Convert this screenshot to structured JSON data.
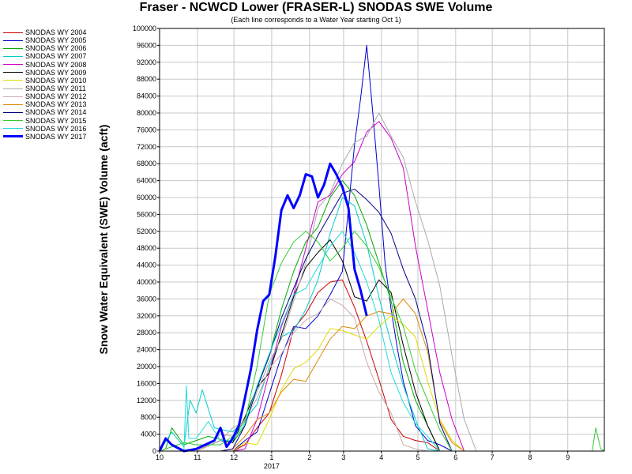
{
  "chart_data": {
    "type": "line",
    "title": "Fraser - NCWCD Lower (FRASER-L) SNODAS SWE Volume",
    "subtitle": "(Each line corresponds to a Water Year starting Oct 1)",
    "ylabel": "Snow Water Equivalent (SWE) Volume (acft)",
    "xlabel": "",
    "ylim": [
      0,
      100000
    ],
    "y_ticks": [
      0,
      4000,
      8000,
      12000,
      16000,
      20000,
      24000,
      28000,
      32000,
      36000,
      40000,
      44000,
      48000,
      52000,
      56000,
      60000,
      64000,
      68000,
      72000,
      76000,
      80000,
      84000,
      88000,
      92000,
      96000,
      100000
    ],
    "x_unit": "days since Oct 1",
    "xlim": [
      0,
      365
    ],
    "x_ticks": [
      {
        "label": "10",
        "x": 0
      },
      {
        "label": "11",
        "x": 31
      },
      {
        "label": "12",
        "x": 61
      },
      {
        "label": "1",
        "x": 92
      },
      {
        "label": "2",
        "x": 123
      },
      {
        "label": "3",
        "x": 151
      },
      {
        "label": "4",
        "x": 182
      },
      {
        "label": "5",
        "x": 212
      },
      {
        "label": "6",
        "x": 243
      },
      {
        "label": "7",
        "x": 273
      },
      {
        "label": "8",
        "x": 304
      },
      {
        "label": "9",
        "x": 335
      }
    ],
    "x_year_label": {
      "label": "2017",
      "x": 92
    },
    "grid": true,
    "legend_position": "left",
    "series": [
      {
        "name": "SNODAS WY 2004",
        "color": "#cc0000",
        "width": 1,
        "x": [
          0,
          60,
          70,
          80,
          90,
          100,
          110,
          120,
          130,
          140,
          150,
          160,
          170,
          180,
          190,
          200,
          210,
          220,
          230
        ],
        "y": [
          0,
          0,
          1000,
          4000,
          10000,
          18000,
          28000,
          34000,
          38000,
          40000,
          39000,
          35000,
          26000,
          16000,
          9000,
          4000,
          2000,
          500,
          0
        ]
      },
      {
        "name": "SNODAS WY 2005",
        "color": "#0000cc",
        "width": 1,
        "x": [
          0,
          10,
          60,
          70,
          80,
          90,
          100,
          110,
          120,
          130,
          140,
          150,
          155,
          160,
          165,
          170,
          175,
          180,
          185,
          190,
          195,
          200,
          210,
          220,
          230,
          240
        ],
        "y": [
          0,
          0,
          0,
          1500,
          6000,
          14000,
          22000,
          28000,
          30000,
          32000,
          36000,
          44000,
          58000,
          72000,
          82000,
          96000,
          80000,
          62000,
          46000,
          34000,
          24000,
          15000,
          7000,
          2500,
          500,
          0
        ]
      },
      {
        "name": "SNODAS WY 2006",
        "color": "#00aa00",
        "width": 1,
        "x": [
          0,
          5,
          10,
          20,
          40,
          60,
          70,
          80,
          90,
          100,
          110,
          120,
          130,
          140,
          150,
          160,
          170,
          180,
          190,
          200,
          210,
          220,
          230,
          240
        ],
        "y": [
          0,
          2000,
          6000,
          1000,
          2000,
          3000,
          6000,
          14000,
          24000,
          34000,
          42000,
          48000,
          54000,
          60000,
          64000,
          62000,
          54000,
          44000,
          34000,
          22000,
          12000,
          5000,
          1000,
          0
        ]
      },
      {
        "name": "SNODAS WY 2007",
        "color": "#00cccc",
        "width": 1,
        "x": [
          0,
          10,
          20,
          25,
          30,
          35,
          45,
          60,
          70,
          80,
          90,
          100,
          110,
          120,
          130,
          140,
          150,
          160,
          170,
          180,
          190,
          200,
          210,
          220,
          230
        ],
        "y": [
          0,
          3000,
          2000,
          12000,
          8000,
          16000,
          6000,
          4000,
          6000,
          12000,
          20000,
          26000,
          30000,
          34000,
          40000,
          50000,
          60000,
          58000,
          48000,
          38000,
          26000,
          15000,
          6000,
          1500,
          0
        ]
      },
      {
        "name": "SNODAS WY 2008",
        "color": "#cc00cc",
        "width": 1,
        "x": [
          0,
          60,
          70,
          80,
          90,
          100,
          110,
          120,
          130,
          140,
          150,
          160,
          170,
          180,
          190,
          200,
          210,
          220,
          230,
          240,
          250
        ],
        "y": [
          0,
          0,
          2000,
          8000,
          18000,
          28000,
          38000,
          48000,
          58000,
          62000,
          66000,
          68000,
          74000,
          78000,
          74000,
          66000,
          50000,
          34000,
          18000,
          6000,
          0
        ]
      },
      {
        "name": "SNODAS WY 2009",
        "color": "#000000",
        "width": 1,
        "x": [
          0,
          30,
          50,
          60,
          70,
          80,
          90,
          100,
          110,
          120,
          130,
          140,
          150,
          160,
          170,
          180,
          190,
          200,
          210,
          220,
          230,
          240
        ],
        "y": [
          0,
          0,
          1000,
          3000,
          8000,
          14000,
          20000,
          28000,
          36000,
          42000,
          48000,
          50000,
          44000,
          38000,
          36000,
          40000,
          36000,
          26000,
          14000,
          5000,
          1000,
          0
        ]
      },
      {
        "name": "SNODAS WY 2010",
        "color": "#dddd00",
        "width": 1,
        "x": [
          0,
          60,
          70,
          80,
          90,
          100,
          110,
          120,
          130,
          140,
          150,
          160,
          170,
          180,
          190,
          200,
          210,
          220,
          230,
          240,
          250
        ],
        "y": [
          0,
          0,
          1000,
          3000,
          8000,
          14000,
          18000,
          22000,
          24000,
          28000,
          30000,
          28000,
          26000,
          28000,
          32000,
          30000,
          26000,
          18000,
          8000,
          2000,
          0
        ]
      },
      {
        "name": "SNODAS WY 2011",
        "color": "#aaaaaa",
        "width": 1,
        "x": [
          0,
          30,
          50,
          60,
          70,
          80,
          90,
          100,
          110,
          120,
          130,
          140,
          150,
          160,
          170,
          180,
          190,
          200,
          210,
          220,
          230,
          240,
          250,
          260
        ],
        "y": [
          0,
          500,
          2000,
          4000,
          8000,
          14000,
          20000,
          28000,
          36000,
          44000,
          56000,
          62000,
          68000,
          72000,
          76000,
          80000,
          74000,
          68000,
          60000,
          50000,
          38000,
          24000,
          8000,
          0
        ]
      },
      {
        "name": "SNODAS WY 2012",
        "color": "#ccaaaa",
        "width": 1,
        "x": [
          0,
          30,
          40,
          50,
          60,
          70,
          80,
          90,
          100,
          110,
          120,
          130,
          140,
          150,
          160,
          170,
          180,
          190,
          200,
          210,
          220
        ],
        "y": [
          0,
          0,
          1500,
          3000,
          5000,
          8000,
          12000,
          18000,
          24000,
          28000,
          30000,
          34000,
          36000,
          34000,
          30000,
          22000,
          14000,
          8000,
          3000,
          1000,
          0
        ]
      },
      {
        "name": "SNODAS WY 2013",
        "color": "#dd8800",
        "width": 1,
        "x": [
          0,
          50,
          60,
          70,
          80,
          90,
          100,
          110,
          120,
          130,
          140,
          150,
          160,
          170,
          180,
          190,
          200,
          210,
          220,
          230,
          240,
          250
        ],
        "y": [
          0,
          0,
          1000,
          3000,
          6000,
          10000,
          14000,
          16000,
          18000,
          22000,
          26000,
          28000,
          30000,
          32000,
          32000,
          34000,
          36000,
          32000,
          22000,
          8000,
          2000,
          0
        ]
      },
      {
        "name": "SNODAS WY 2014",
        "color": "#000088",
        "width": 1,
        "x": [
          0,
          50,
          60,
          70,
          80,
          90,
          100,
          110,
          120,
          130,
          140,
          150,
          160,
          170,
          180,
          190,
          200,
          210,
          220,
          230,
          240
        ],
        "y": [
          0,
          0,
          1500,
          6000,
          14000,
          24000,
          32000,
          38000,
          44000,
          52000,
          56000,
          60000,
          62000,
          60000,
          56000,
          50000,
          44000,
          36000,
          24000,
          8000,
          0
        ]
      },
      {
        "name": "SNODAS WY 2015",
        "color": "#33cc33",
        "width": 1,
        "x": [
          0,
          20,
          30,
          40,
          50,
          60,
          70,
          80,
          90,
          100,
          110,
          120,
          130,
          140,
          150,
          160,
          170,
          180,
          190,
          200,
          210,
          220,
          230,
          240,
          250,
          355,
          358,
          362,
          365
        ],
        "y": [
          0,
          1000,
          3000,
          2000,
          1000,
          2000,
          8000,
          20000,
          36000,
          46000,
          50000,
          52000,
          48000,
          46000,
          48000,
          52000,
          50000,
          44000,
          36000,
          28000,
          20000,
          12000,
          4000,
          1000,
          0,
          0,
          4000,
          1500,
          0
        ]
      },
      {
        "name": "SNODAS WY 2016",
        "color": "#22dddd",
        "width": 1,
        "x": [
          0,
          20,
          22,
          24,
          30,
          40,
          50,
          60,
          70,
          80,
          90,
          100,
          110,
          120,
          130,
          140,
          150,
          160,
          170,
          180,
          190,
          200,
          210,
          220,
          230,
          240
        ],
        "y": [
          0,
          0,
          14000,
          4000,
          3000,
          6000,
          4000,
          3000,
          6000,
          14000,
          24000,
          30000,
          36000,
          40000,
          44000,
          48000,
          52000,
          48000,
          40000,
          30000,
          20000,
          12000,
          6000,
          2000,
          500,
          0
        ]
      },
      {
        "name": "SNODAS WY 2017",
        "color": "#0000ff",
        "width": 3,
        "x": [
          0,
          5,
          10,
          20,
          30,
          45,
          50,
          55,
          60,
          65,
          70,
          75,
          80,
          85,
          90,
          95,
          100,
          105,
          110,
          115,
          120,
          125,
          130,
          135,
          140,
          145,
          150,
          155,
          160,
          165,
          170
        ],
        "y": [
          0,
          3000,
          500,
          500,
          1000,
          2000,
          4000,
          2000,
          3000,
          5000,
          14000,
          20000,
          28000,
          34000,
          38000,
          46000,
          56000,
          62000,
          58000,
          60000,
          64000,
          66000,
          60000,
          62000,
          68000,
          66000,
          62000,
          56000,
          44000,
          38000,
          32000
        ]
      }
    ]
  }
}
